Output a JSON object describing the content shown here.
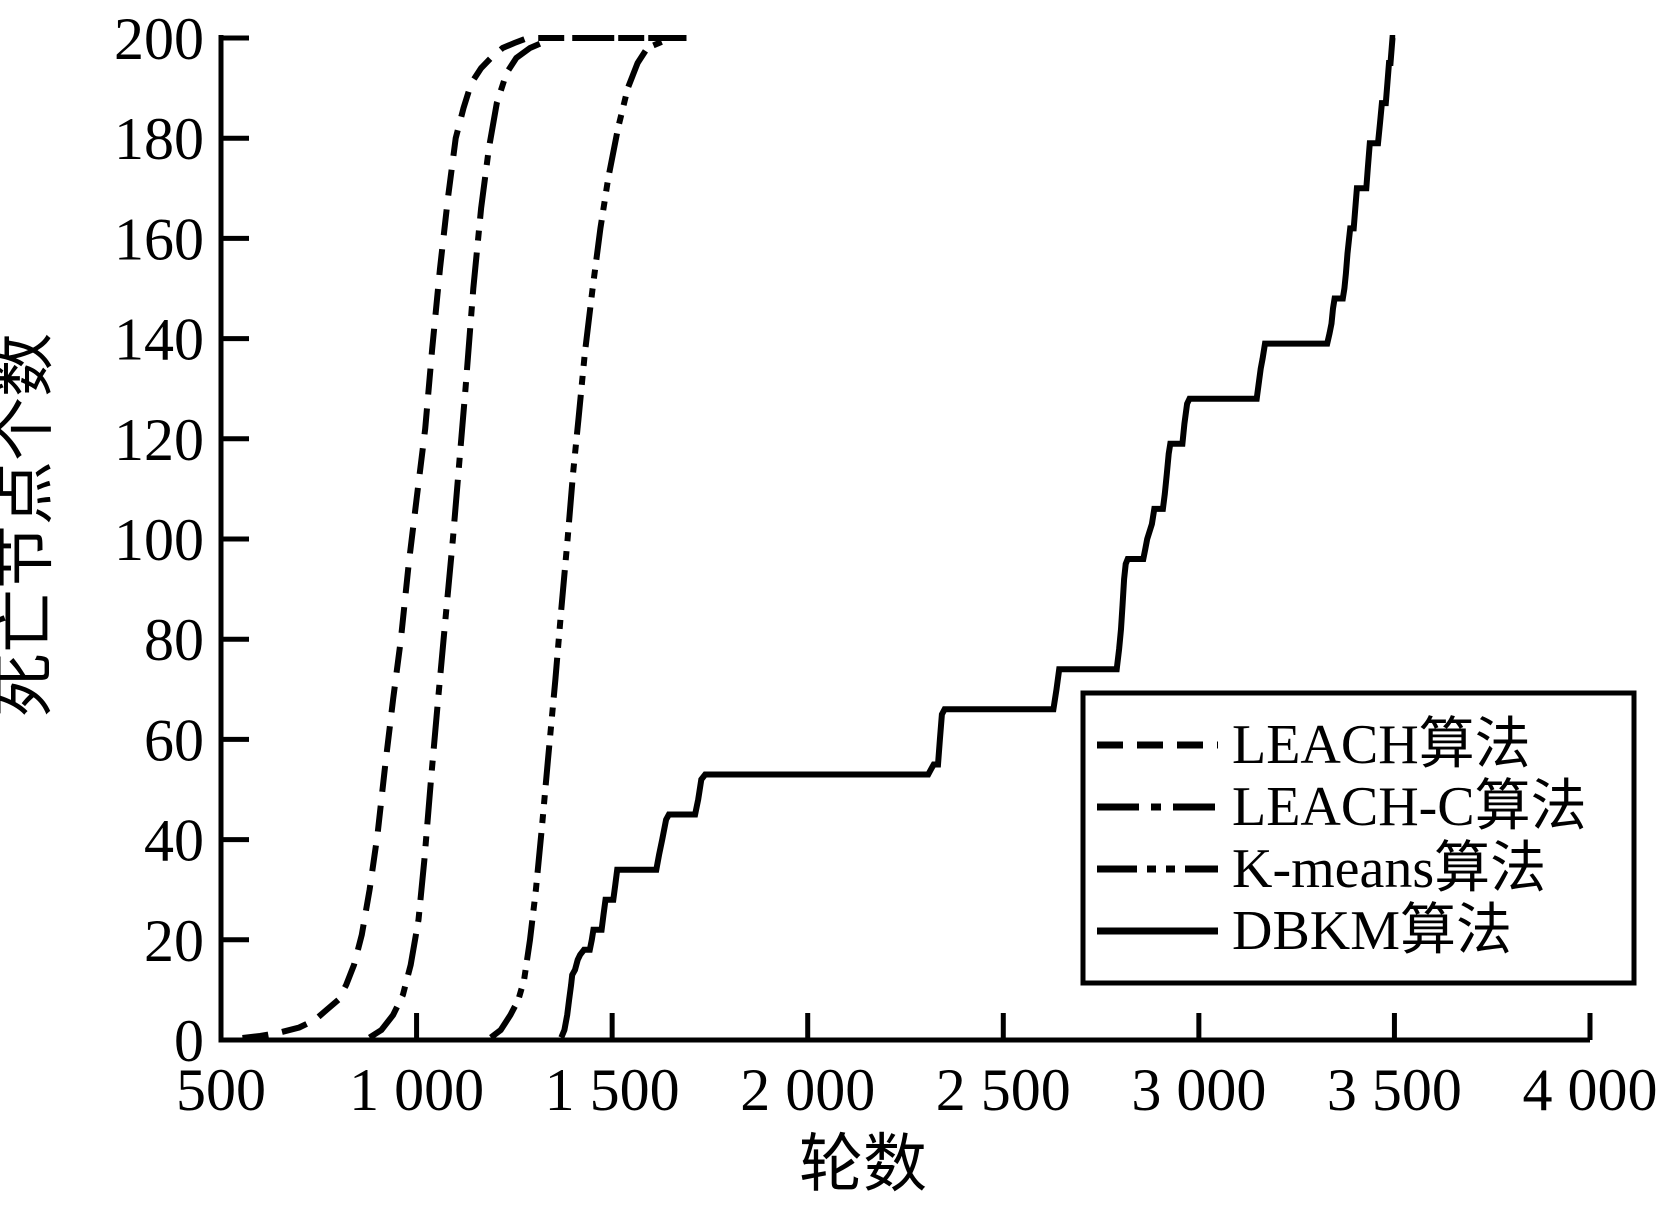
{
  "figure": {
    "background_color": "#ffffff",
    "ink_color": "#000000"
  },
  "chart_data": {
    "type": "line",
    "title": "",
    "xlabel": "轮数",
    "ylabel": "死亡节点个数",
    "grid": false,
    "legend_position": "inside lower right",
    "x_axis": {
      "min": 500,
      "max": 4000,
      "tick_step": 500,
      "tick_labels": [
        "500",
        "1 000",
        "1 500",
        "2 000",
        "2 500",
        "3 000",
        "3 500",
        "4 000"
      ]
    },
    "y_axis": {
      "min": 0,
      "max": 200,
      "tick_step": 20,
      "tick_labels": [
        "0",
        "20",
        "40",
        "60",
        "80",
        "100",
        "120",
        "140",
        "160",
        "180",
        "200"
      ]
    },
    "series": [
      {
        "key": "leach",
        "name": "LEACH算法",
        "line_style": "dashed",
        "color": "#000000",
        "points": [
          [
            555,
            0.4
          ],
          [
            600,
            0.8
          ],
          [
            650,
            1.5
          ],
          [
            700,
            2.5
          ],
          [
            740,
            4
          ],
          [
            770,
            6
          ],
          [
            800,
            8
          ],
          [
            820,
            11
          ],
          [
            840,
            15
          ],
          [
            860,
            21
          ],
          [
            880,
            30
          ],
          [
            900,
            41
          ],
          [
            920,
            55
          ],
          [
            940,
            68
          ],
          [
            960,
            80
          ],
          [
            980,
            95
          ],
          [
            1000,
            108
          ],
          [
            1022,
            122
          ],
          [
            1040,
            138
          ],
          [
            1060,
            154
          ],
          [
            1080,
            168
          ],
          [
            1100,
            180
          ],
          [
            1120,
            186
          ],
          [
            1140,
            191
          ],
          [
            1165,
            194
          ],
          [
            1190,
            196
          ],
          [
            1220,
            198
          ],
          [
            1250,
            199
          ],
          [
            1284,
            200
          ],
          [
            1690,
            200
          ]
        ]
      },
      {
        "key": "leach-c",
        "name": "LEACH-C算法",
        "line_style": "dash-dot",
        "color": "#000000",
        "points": [
          [
            880,
            0.5
          ],
          [
            910,
            2
          ],
          [
            940,
            5
          ],
          [
            965,
            9
          ],
          [
            985,
            15
          ],
          [
            1005,
            24
          ],
          [
            1020,
            36
          ],
          [
            1037,
            52
          ],
          [
            1055,
            68
          ],
          [
            1075,
            85
          ],
          [
            1093,
            100
          ],
          [
            1110,
            116
          ],
          [
            1125,
            130
          ],
          [
            1145,
            150
          ],
          [
            1165,
            166
          ],
          [
            1185,
            178
          ],
          [
            1205,
            187
          ],
          [
            1230,
            193
          ],
          [
            1255,
            196
          ],
          [
            1290,
            198
          ],
          [
            1320,
            199
          ],
          [
            1340,
            200
          ],
          [
            1690,
            200
          ]
        ]
      },
      {
        "key": "k-means",
        "name": "K-means算法",
        "line_style": "dash-dot-dot",
        "color": "#000000",
        "points": [
          [
            1190,
            0.5
          ],
          [
            1215,
            2
          ],
          [
            1240,
            5
          ],
          [
            1260,
            8
          ],
          [
            1275,
            12
          ],
          [
            1290,
            20
          ],
          [
            1305,
            30
          ],
          [
            1320,
            42
          ],
          [
            1336,
            56
          ],
          [
            1355,
            72
          ],
          [
            1370,
            86
          ],
          [
            1386,
            100
          ],
          [
            1400,
            113
          ],
          [
            1414,
            124
          ],
          [
            1430,
            137
          ],
          [
            1450,
            150
          ],
          [
            1470,
            162
          ],
          [
            1490,
            172
          ],
          [
            1515,
            182
          ],
          [
            1540,
            190
          ],
          [
            1565,
            195
          ],
          [
            1590,
            198
          ],
          [
            1620,
            199
          ],
          [
            1650,
            200
          ],
          [
            1690,
            200
          ]
        ]
      },
      {
        "key": "dbkm",
        "name": "DBKM算法",
        "line_style": "solid",
        "color": "#000000",
        "points": [
          [
            1370,
            0.5
          ],
          [
            1378,
            2
          ],
          [
            1385,
            5
          ],
          [
            1390,
            8
          ],
          [
            1395,
            11
          ],
          [
            1398,
            13
          ],
          [
            1405,
            14
          ],
          [
            1412,
            16
          ],
          [
            1418,
            17
          ],
          [
            1428,
            18
          ],
          [
            1443,
            18
          ],
          [
            1448,
            20
          ],
          [
            1452,
            22
          ],
          [
            1473,
            22
          ],
          [
            1478,
            25
          ],
          [
            1483,
            28
          ],
          [
            1503,
            28
          ],
          [
            1508,
            31
          ],
          [
            1513,
            34
          ],
          [
            1613,
            34
          ],
          [
            1620,
            37
          ],
          [
            1628,
            40
          ],
          [
            1638,
            44
          ],
          [
            1645,
            45
          ],
          [
            1712,
            45
          ],
          [
            1720,
            48
          ],
          [
            1728,
            52
          ],
          [
            1738,
            53
          ],
          [
            2308,
            53
          ],
          [
            2315,
            54
          ],
          [
            2322,
            55
          ],
          [
            2333,
            55
          ],
          [
            2338,
            60
          ],
          [
            2343,
            65
          ],
          [
            2350,
            66
          ],
          [
            2628,
            66
          ],
          [
            2636,
            70
          ],
          [
            2643,
            74
          ],
          [
            2790,
            74
          ],
          [
            2796,
            78
          ],
          [
            2801,
            82
          ],
          [
            2805,
            87
          ],
          [
            2809,
            92
          ],
          [
            2813,
            95
          ],
          [
            2818,
            96
          ],
          [
            2858,
            96
          ],
          [
            2863,
            98
          ],
          [
            2868,
            100
          ],
          [
            2880,
            103
          ],
          [
            2886,
            106
          ],
          [
            2908,
            106
          ],
          [
            2913,
            109
          ],
          [
            2918,
            113
          ],
          [
            2923,
            117
          ],
          [
            2927,
            119
          ],
          [
            2958,
            119
          ],
          [
            2963,
            123
          ],
          [
            2970,
            127
          ],
          [
            2976,
            128
          ],
          [
            3148,
            128
          ],
          [
            3153,
            131
          ],
          [
            3158,
            134
          ],
          [
            3163,
            136
          ],
          [
            3169,
            139
          ],
          [
            3328,
            139
          ],
          [
            3334,
            141
          ],
          [
            3339,
            143
          ],
          [
            3343,
            146
          ],
          [
            3347,
            148
          ],
          [
            3368,
            148
          ],
          [
            3372,
            150
          ],
          [
            3376,
            153
          ],
          [
            3380,
            157
          ],
          [
            3384,
            160
          ],
          [
            3387,
            162
          ],
          [
            3396,
            162
          ],
          [
            3400,
            166
          ],
          [
            3404,
            170
          ],
          [
            3428,
            170
          ],
          [
            3432,
            174
          ],
          [
            3437,
            179
          ],
          [
            3458,
            179
          ],
          [
            3463,
            183
          ],
          [
            3468,
            187
          ],
          [
            3478,
            187
          ],
          [
            3482,
            191
          ],
          [
            3486,
            195
          ],
          [
            3490,
            195
          ],
          [
            3493,
            198
          ],
          [
            3495,
            200
          ],
          [
            3502,
            200
          ]
        ]
      }
    ]
  },
  "legend": {
    "items": [
      {
        "label": "LEACH算法",
        "style": "dashed"
      },
      {
        "label": "LEACH-C算法",
        "style": "dash-dot"
      },
      {
        "label": "K-means算法",
        "style": "dash-dot-dot"
      },
      {
        "label": "DBKM算法",
        "style": "solid"
      }
    ]
  }
}
